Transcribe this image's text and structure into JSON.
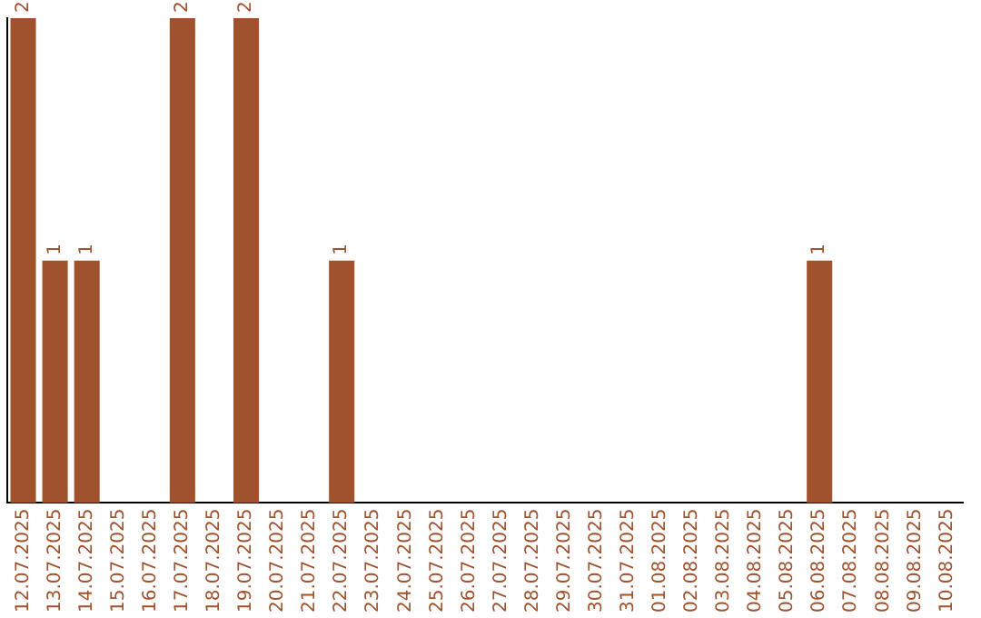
{
  "chart_data": {
    "type": "bar",
    "categories": [
      "12.07.2025",
      "13.07.2025",
      "14.07.2025",
      "15.07.2025",
      "16.07.2025",
      "17.07.2025",
      "18.07.2025",
      "19.07.2025",
      "20.07.2025",
      "21.07.2025",
      "22.07.2025",
      "23.07.2025",
      "24.07.2025",
      "25.07.2025",
      "26.07.2025",
      "27.07.2025",
      "28.07.2025",
      "29.07.2025",
      "30.07.2025",
      "31.07.2025",
      "01.08.2025",
      "02.08.2025",
      "03.08.2025",
      "04.08.2025",
      "05.08.2025",
      "06.08.2025",
      "07.08.2025",
      "08.08.2025",
      "09.08.2025",
      "10.08.2025"
    ],
    "values": [
      2,
      1,
      1,
      0,
      0,
      2,
      0,
      2,
      0,
      0,
      1,
      0,
      0,
      0,
      0,
      0,
      0,
      0,
      0,
      0,
      0,
      0,
      0,
      0,
      0,
      1,
      0,
      0,
      0,
      0
    ],
    "value_labels": [
      "2",
      "1",
      "1",
      null,
      null,
      "2",
      null,
      "2",
      null,
      null,
      "1",
      null,
      null,
      null,
      null,
      null,
      null,
      null,
      null,
      null,
      null,
      null,
      null,
      null,
      null,
      "1",
      null,
      null,
      null,
      null
    ],
    "color": "#a0522d",
    "grid": false,
    "legend": false,
    "tick_labels": "x"
  }
}
